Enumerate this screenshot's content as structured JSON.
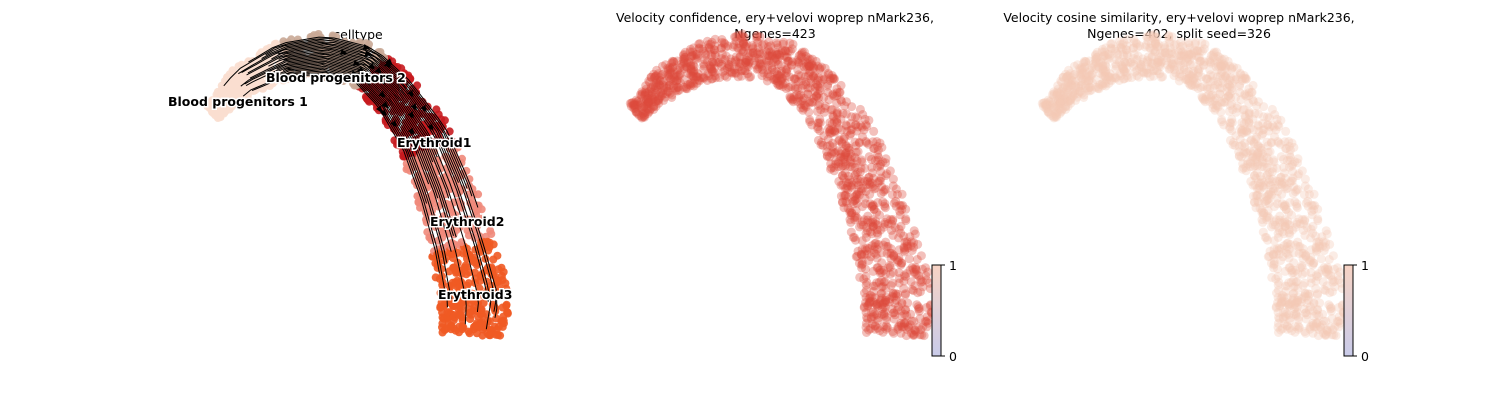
{
  "chart_data": [
    {
      "type": "scatter",
      "title": "celltype",
      "embedding_with_velocity_stream": true,
      "legend_placement": "on data",
      "categories": [
        "Blood progenitors 1",
        "Blood progenitors 2",
        "Erythroid1",
        "Erythroid2",
        "Erythroid3"
      ],
      "category_colors": {
        "Blood progenitors 1": "#f9decf",
        "Blood progenitors 2": "#c9a996",
        "Erythroid1": "#c71b1f",
        "Erythroid2": "#ef8a7b",
        "Erythroid3": "#f05a24"
      },
      "grid": false,
      "axes": "off"
    },
    {
      "type": "scatter",
      "title": "Velocity confidence, ery+velovi woprep nMark236,\n Ngenes=423",
      "colorbar": {
        "min": 0,
        "max": 1,
        "ticks": [
          "0",
          "1"
        ],
        "colormap": [
          "#c9cbe9",
          "#f7d3c4"
        ]
      },
      "point_color": "#dc4b3c",
      "grid": false,
      "axes": "off"
    },
    {
      "type": "scatter",
      "title": "Velocity cosine similarity, ery+velovi woprep nMark236,\n Ngenes=402, split seed=326",
      "colorbar": {
        "min": 0,
        "max": 1,
        "ticks": [
          "0",
          "1"
        ],
        "colormap": [
          "#c9cbe9",
          "#f7d3c4"
        ]
      },
      "point_color": "#f4c8b4",
      "grid": false,
      "axes": "off"
    }
  ]
}
